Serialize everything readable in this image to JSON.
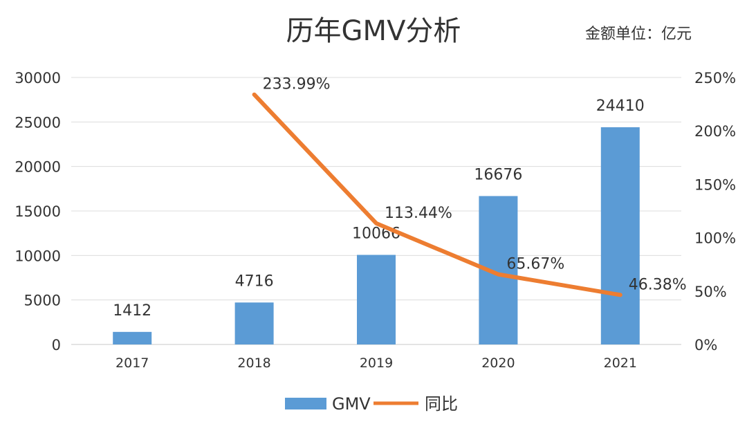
{
  "chart_data": {
    "type": "bar+line",
    "title": "历年GMV分析",
    "unit_note": "金额单位：亿元",
    "categories": [
      "2017",
      "2018",
      "2019",
      "2020",
      "2021"
    ],
    "series": [
      {
        "name": "GMV",
        "type": "bar",
        "axis": "left",
        "color": "#5B9BD5",
        "values": [
          1412,
          4716,
          10066,
          16676,
          24410
        ],
        "labels": [
          "1412",
          "4716",
          "10066",
          "16676",
          "24410"
        ]
      },
      {
        "name": "同比",
        "type": "line",
        "axis": "right",
        "color": "#ED7D31",
        "values": [
          null,
          233.99,
          113.44,
          65.67,
          46.38
        ],
        "labels": [
          "",
          "233.99%",
          "113.44%",
          "65.67%",
          "46.38%"
        ]
      }
    ],
    "y_left": {
      "ylim": [
        0,
        30000
      ],
      "ticks": [
        "0",
        "5000",
        "10000",
        "15000",
        "20000",
        "25000",
        "30000"
      ]
    },
    "y_right": {
      "ylim": [
        0,
        250
      ],
      "ticks": [
        "0%",
        "50%",
        "100%",
        "150%",
        "200%",
        "250%"
      ]
    },
    "grid": true,
    "legend": "bottom"
  }
}
